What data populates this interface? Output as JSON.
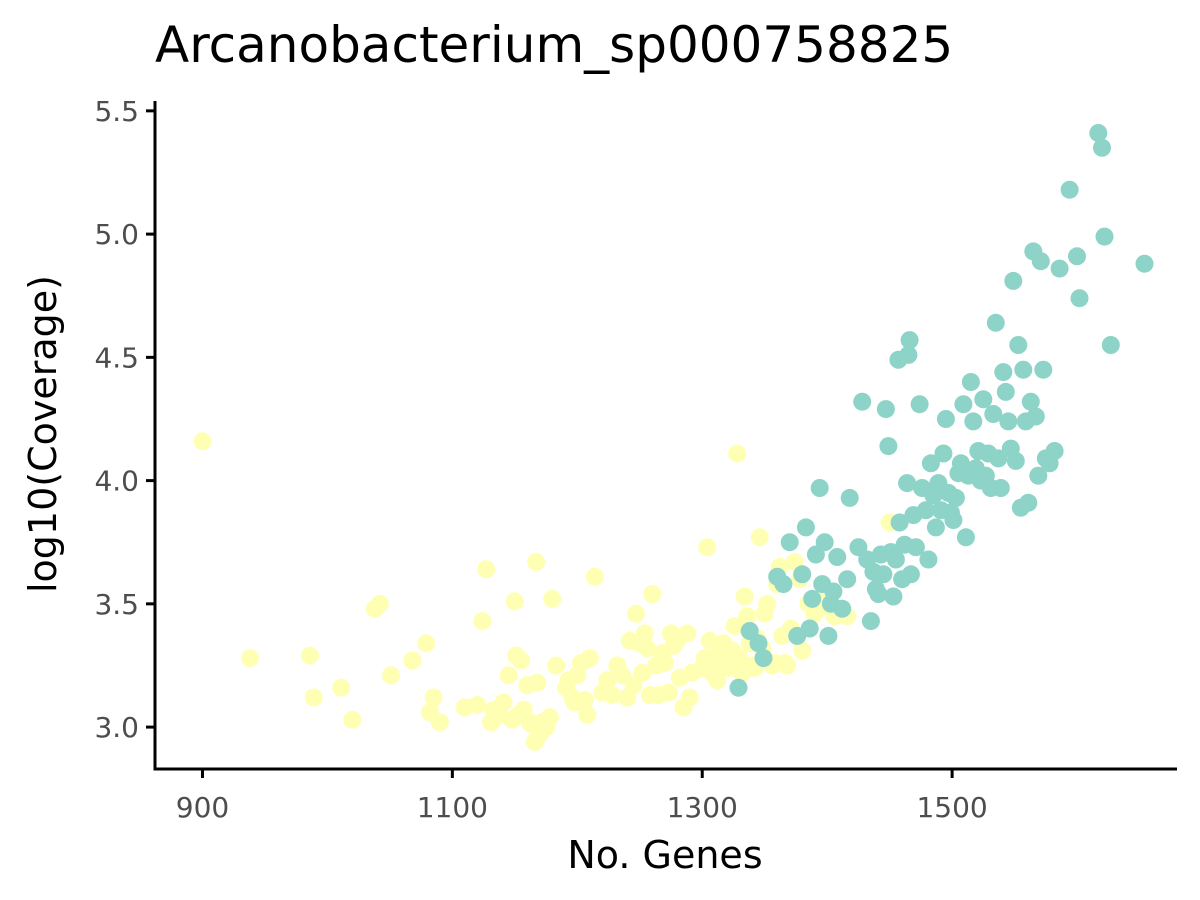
{
  "chart_data": {
    "type": "scatter",
    "title": "Arcanobacterium_sp000758825",
    "xlabel": "No. Genes",
    "ylabel": "log10(Coverage)",
    "xlim": [
      862,
      1680
    ],
    "ylim": [
      2.83,
      5.54
    ],
    "xticks": [
      900,
      1100,
      1300,
      1500
    ],
    "yticks": [
      3.0,
      3.5,
      4.0,
      4.5,
      5.0,
      5.5
    ],
    "xtick_labels": [
      "900",
      "1100",
      "1300",
      "1500"
    ],
    "ytick_labels": [
      "3.0",
      "3.5",
      "4.0",
      "4.5",
      "5.0",
      "5.5"
    ],
    "grid": false,
    "legend": "none",
    "series": [
      {
        "color": "#FFFFB3",
        "points": [
          [
            900,
            4.16
          ],
          [
            938,
            3.28
          ],
          [
            986,
            3.29
          ],
          [
            989,
            3.12
          ],
          [
            1011,
            3.16
          ],
          [
            1020,
            3.03
          ],
          [
            1038,
            3.48
          ],
          [
            1042,
            3.5
          ],
          [
            1051,
            3.21
          ],
          [
            1068,
            3.27
          ],
          [
            1079,
            3.34
          ],
          [
            1082,
            3.06
          ],
          [
            1085,
            3.12
          ],
          [
            1090,
            3.02
          ],
          [
            1110,
            3.08
          ],
          [
            1120,
            3.09
          ],
          [
            1124,
            3.43
          ],
          [
            1127,
            3.64
          ],
          [
            1131,
            3.02
          ],
          [
            1133,
            3.07
          ],
          [
            1138,
            3.05
          ],
          [
            1141,
            3.1
          ],
          [
            1145,
            3.21
          ],
          [
            1148,
            3.03
          ],
          [
            1150,
            3.51
          ],
          [
            1151,
            3.29
          ],
          [
            1153,
            3.05
          ],
          [
            1155,
            3.27
          ],
          [
            1157,
            3.07
          ],
          [
            1160,
            3.17
          ],
          [
            1162,
            3.02
          ],
          [
            1164,
            3.01
          ],
          [
            1166,
            2.94
          ],
          [
            1167,
            3.67
          ],
          [
            1168,
            3.18
          ],
          [
            1170,
            2.97
          ],
          [
            1172,
            3.02
          ],
          [
            1175,
            3.0
          ],
          [
            1178,
            3.04
          ],
          [
            1180,
            3.52
          ],
          [
            1183,
            3.25
          ],
          [
            1191,
            3.16
          ],
          [
            1193,
            3.19
          ],
          [
            1196,
            3.12
          ],
          [
            1198,
            3.1
          ],
          [
            1200,
            3.21
          ],
          [
            1203,
            3.26
          ],
          [
            1206,
            3.11
          ],
          [
            1208,
            3.05
          ],
          [
            1210,
            3.28
          ],
          [
            1214,
            3.61
          ],
          [
            1220,
            3.14
          ],
          [
            1224,
            3.19
          ],
          [
            1228,
            3.13
          ],
          [
            1232,
            3.25
          ],
          [
            1236,
            3.21
          ],
          [
            1240,
            3.12
          ],
          [
            1242,
            3.35
          ],
          [
            1245,
            3.17
          ],
          [
            1247,
            3.46
          ],
          [
            1250,
            3.34
          ],
          [
            1252,
            3.22
          ],
          [
            1254,
            3.38
          ],
          [
            1256,
            3.32
          ],
          [
            1258,
            3.13
          ],
          [
            1260,
            3.54
          ],
          [
            1263,
            3.25
          ],
          [
            1265,
            3.13
          ],
          [
            1268,
            3.3
          ],
          [
            1270,
            3.26
          ],
          [
            1273,
            3.14
          ],
          [
            1275,
            3.38
          ],
          [
            1277,
            3.33
          ],
          [
            1280,
            3.35
          ],
          [
            1282,
            3.2
          ],
          [
            1285,
            3.08
          ],
          [
            1288,
            3.38
          ],
          [
            1290,
            3.12
          ],
          [
            1292,
            3.22
          ],
          [
            1300,
            3.24
          ],
          [
            1302,
            3.28
          ],
          [
            1304,
            3.73
          ],
          [
            1306,
            3.35
          ],
          [
            1308,
            3.22
          ],
          [
            1310,
            3.28
          ],
          [
            1312,
            3.19
          ],
          [
            1315,
            3.3
          ],
          [
            1317,
            3.34
          ],
          [
            1319,
            3.26
          ],
          [
            1322,
            3.24
          ],
          [
            1324,
            3.31
          ],
          [
            1326,
            3.41
          ],
          [
            1328,
            4.11
          ],
          [
            1330,
            3.28
          ],
          [
            1332,
            3.22
          ],
          [
            1334,
            3.53
          ],
          [
            1336,
            3.45
          ],
          [
            1338,
            3.34
          ],
          [
            1340,
            3.25
          ],
          [
            1342,
            3.24
          ],
          [
            1344,
            3.36
          ],
          [
            1346,
            3.77
          ],
          [
            1348,
            3.32
          ],
          [
            1350,
            3.46
          ],
          [
            1352,
            3.5
          ],
          [
            1356,
            3.25
          ],
          [
            1358,
            3.26
          ],
          [
            1360,
            3.58
          ],
          [
            1362,
            3.65
          ],
          [
            1364,
            3.37
          ],
          [
            1366,
            3.26
          ],
          [
            1368,
            3.25
          ],
          [
            1371,
            3.4
          ],
          [
            1374,
            3.67
          ],
          [
            1378,
            3.6
          ],
          [
            1380,
            3.31
          ],
          [
            1385,
            3.5
          ],
          [
            1390,
            3.46
          ],
          [
            1395,
            3.51
          ],
          [
            1400,
            3.49
          ],
          [
            1406,
            3.45
          ],
          [
            1412,
            3.47
          ],
          [
            1416,
            3.45
          ],
          [
            1450,
            3.83
          ]
        ]
      },
      {
        "color": "#8DD3C7",
        "points": [
          [
            1329,
            3.16
          ],
          [
            1338,
            3.39
          ],
          [
            1345,
            3.34
          ],
          [
            1349,
            3.28
          ],
          [
            1360,
            3.61
          ],
          [
            1365,
            3.58
          ],
          [
            1370,
            3.75
          ],
          [
            1376,
            3.37
          ],
          [
            1380,
            3.62
          ],
          [
            1383,
            3.81
          ],
          [
            1386,
            3.4
          ],
          [
            1388,
            3.52
          ],
          [
            1391,
            3.7
          ],
          [
            1394,
            3.97
          ],
          [
            1396,
            3.58
          ],
          [
            1398,
            3.75
          ],
          [
            1401,
            3.37
          ],
          [
            1403,
            3.5
          ],
          [
            1405,
            3.55
          ],
          [
            1408,
            3.69
          ],
          [
            1412,
            3.48
          ],
          [
            1416,
            3.6
          ],
          [
            1418,
            3.93
          ],
          [
            1425,
            3.73
          ],
          [
            1428,
            4.32
          ],
          [
            1432,
            3.68
          ],
          [
            1435,
            3.43
          ],
          [
            1437,
            3.63
          ],
          [
            1439,
            3.56
          ],
          [
            1441,
            3.54
          ],
          [
            1443,
            3.7
          ],
          [
            1445,
            3.62
          ],
          [
            1447,
            4.29
          ],
          [
            1449,
            4.14
          ],
          [
            1451,
            3.71
          ],
          [
            1453,
            3.53
          ],
          [
            1455,
            3.68
          ],
          [
            1457,
            4.49
          ],
          [
            1458,
            3.83
          ],
          [
            1460,
            3.6
          ],
          [
            1462,
            3.74
          ],
          [
            1464,
            3.99
          ],
          [
            1465,
            4.51
          ],
          [
            1466,
            4.57
          ],
          [
            1467,
            3.62
          ],
          [
            1469,
            3.86
          ],
          [
            1471,
            3.73
          ],
          [
            1474,
            4.31
          ],
          [
            1476,
            3.97
          ],
          [
            1479,
            3.88
          ],
          [
            1481,
            3.68
          ],
          [
            1483,
            4.07
          ],
          [
            1485,
            3.94
          ],
          [
            1487,
            3.81
          ],
          [
            1489,
            3.99
          ],
          [
            1491,
            3.88
          ],
          [
            1493,
            4.11
          ],
          [
            1495,
            4.25
          ],
          [
            1497,
            3.95
          ],
          [
            1499,
            3.87
          ],
          [
            1501,
            3.84
          ],
          [
            1503,
            3.93
          ],
          [
            1505,
            4.03
          ],
          [
            1507,
            4.07
          ],
          [
            1509,
            4.31
          ],
          [
            1511,
            3.77
          ],
          [
            1513,
            4.02
          ],
          [
            1515,
            4.4
          ],
          [
            1517,
            4.24
          ],
          [
            1519,
            4.05
          ],
          [
            1521,
            4.12
          ],
          [
            1523,
            4.0
          ],
          [
            1525,
            4.33
          ],
          [
            1527,
            4.02
          ],
          [
            1529,
            4.11
          ],
          [
            1531,
            3.97
          ],
          [
            1533,
            4.27
          ],
          [
            1535,
            4.64
          ],
          [
            1537,
            4.09
          ],
          [
            1539,
            3.97
          ],
          [
            1541,
            4.44
          ],
          [
            1543,
            4.36
          ],
          [
            1545,
            4.24
          ],
          [
            1547,
            4.13
          ],
          [
            1549,
            4.81
          ],
          [
            1551,
            4.08
          ],
          [
            1553,
            4.55
          ],
          [
            1555,
            3.89
          ],
          [
            1557,
            4.45
          ],
          [
            1559,
            4.24
          ],
          [
            1561,
            3.91
          ],
          [
            1563,
            4.32
          ],
          [
            1565,
            4.93
          ],
          [
            1567,
            4.26
          ],
          [
            1569,
            4.02
          ],
          [
            1571,
            4.89
          ],
          [
            1573,
            4.45
          ],
          [
            1575,
            4.09
          ],
          [
            1578,
            4.07
          ],
          [
            1582,
            4.12
          ],
          [
            1586,
            4.86
          ],
          [
            1594,
            5.18
          ],
          [
            1600,
            4.91
          ],
          [
            1602,
            4.74
          ],
          [
            1617,
            5.41
          ],
          [
            1620,
            5.35
          ],
          [
            1622,
            4.99
          ],
          [
            1627,
            4.55
          ],
          [
            1654,
            4.88
          ]
        ]
      }
    ]
  }
}
